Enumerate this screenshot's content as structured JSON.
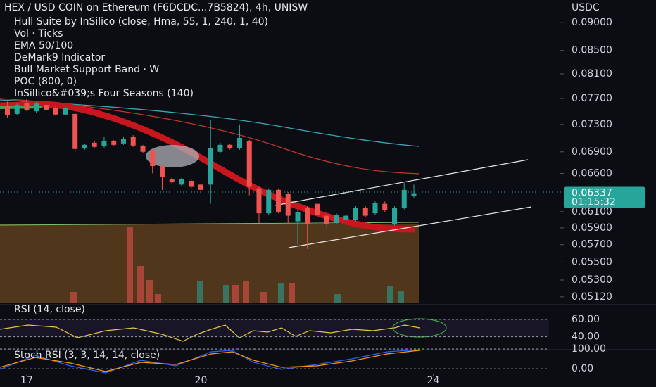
{
  "chart_data": {
    "type": "candlestick",
    "title": "HEX / USD COIN on Ethereum (F6DCDC...7B5824), 4h, UNISW",
    "indicators": [
      "Hull Suite by InSilico (close, Hma, 55, 1, 240, 1, 40)",
      "Vol · Ticks",
      "EMA 50/100",
      "DeMark9 Indicator",
      "Bull Market Support Band · W",
      "POC (800, 0)",
      "InSillico&#039;s Four Seasons (140)"
    ],
    "currency": "USDC",
    "open": [
      0.0759,
      0.0746,
      0.0763,
      0.075,
      0.076,
      0.0755,
      0.0745,
      0.0746,
      0.0695,
      0.0703,
      0.0698,
      0.0705,
      0.0702,
      0.0712,
      0.0698,
      0.0692,
      0.067,
      0.0652,
      0.0645,
      0.065,
      0.0645,
      0.0645,
      0.069,
      0.07,
      0.0695,
      0.0705,
      0.064,
      0.0608,
      0.0638,
      0.0633,
      0.0598,
      0.0615,
      0.062,
      0.0605,
      0.0596,
      0.06,
      0.06,
      0.0615,
      0.0608,
      0.062,
      0.0595,
      0.0615,
      0.063
    ],
    "high": [
      0.0765,
      0.0762,
      0.077,
      0.0765,
      0.0763,
      0.0758,
      0.0757,
      0.0748,
      0.0702,
      0.0705,
      0.0712,
      0.0707,
      0.0711,
      0.0714,
      0.07,
      0.0694,
      0.0672,
      0.0655,
      0.0654,
      0.0652,
      0.0647,
      0.0737,
      0.0703,
      0.0702,
      0.073,
      0.0707,
      0.0642,
      0.064,
      0.064,
      0.0635,
      0.0612,
      0.0617,
      0.065,
      0.0607,
      0.0608,
      0.0607,
      0.0617,
      0.0617,
      0.0623,
      0.0623,
      0.0617,
      0.0647,
      0.0645
    ],
    "low": [
      0.074,
      0.0744,
      0.075,
      0.0748,
      0.075,
      0.0743,
      0.0744,
      0.069,
      0.0693,
      0.0695,
      0.0696,
      0.0698,
      0.07,
      0.0697,
      0.0688,
      0.066,
      0.0638,
      0.0646,
      0.0643,
      0.064,
      0.0636,
      0.062,
      0.0688,
      0.0693,
      0.0693,
      0.0631,
      0.0596,
      0.0606,
      0.0608,
      0.0595,
      0.057,
      0.0565,
      0.0604,
      0.059,
      0.0594,
      0.0598,
      0.0598,
      0.0603,
      0.0606,
      0.061,
      0.0593,
      0.0613,
      0.0628
    ],
    "close": [
      0.0744,
      0.076,
      0.0752,
      0.0762,
      0.0752,
      0.0745,
      0.0755,
      0.0694,
      0.07,
      0.0697,
      0.0706,
      0.07,
      0.0709,
      0.0699,
      0.069,
      0.067,
      0.0655,
      0.0648,
      0.0652,
      0.0642,
      0.0638,
      0.0695,
      0.07,
      0.0695,
      0.071,
      0.0642,
      0.0608,
      0.0638,
      0.061,
      0.0605,
      0.0609,
      0.0595,
      0.0606,
      0.0595,
      0.0606,
      0.0605,
      0.0615,
      0.0605,
      0.0621,
      0.0612,
      0.0615,
      0.0638,
      0.06337
    ],
    "up_color": "#26a69a",
    "down_color": "#ef5350",
    "log": true,
    "ylim": [
      0.0506,
      0.0943
    ],
    "yticks": [
      {
        "value": 0.09,
        "label": "0.09000"
      },
      {
        "value": 0.085,
        "label": "0.08500"
      },
      {
        "value": 0.081,
        "label": "0.08100"
      },
      {
        "value": 0.077,
        "label": "0.07700"
      },
      {
        "value": 0.073,
        "label": "0.07300"
      },
      {
        "value": 0.069,
        "label": "0.06900"
      },
      {
        "value": 0.066,
        "label": "0.06600"
      },
      {
        "value": 0.061,
        "label": "0.06100"
      },
      {
        "value": 0.059,
        "label": "0.05900"
      },
      {
        "value": 0.057,
        "label": "0.05700"
      },
      {
        "value": 0.055,
        "label": "0.05500"
      },
      {
        "value": 0.053,
        "label": "0.05300"
      },
      {
        "value": 0.0512,
        "label": "0.05120"
      }
    ],
    "xlim": [
      -0.76,
      56.69
    ],
    "xticks": [
      {
        "value": 2,
        "label": "17"
      },
      {
        "value": 20,
        "label": "20"
      },
      {
        "value": 44,
        "label": "24"
      }
    ],
    "last_price": 0.06337,
    "countdown": "01:15:32"
  },
  "rsi": {
    "title": "RSI (14, close)",
    "ylim": [
      25,
      73
    ],
    "yticks": [
      {
        "value": 60,
        "label": "60.00"
      },
      {
        "value": 40,
        "label": "40.00"
      }
    ]
  },
  "stoch": {
    "title": "Stoch RSI (3, 3, 14, 14, close)",
    "ylim": [
      -46,
      100
    ],
    "yticks": [
      {
        "value": 100,
        "label": "100.00"
      },
      {
        "value": 0,
        "label": "0.00"
      }
    ]
  }
}
